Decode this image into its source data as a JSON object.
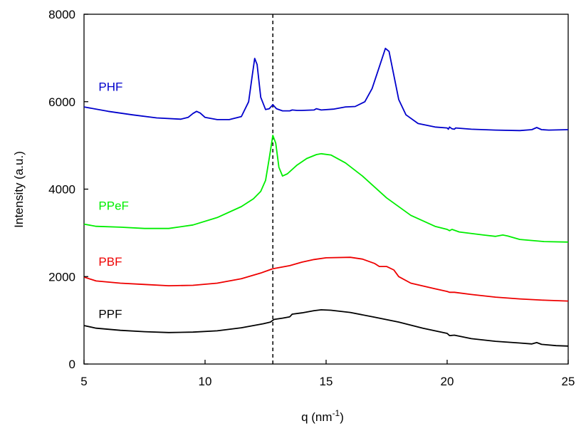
{
  "chart_data": {
    "type": "line",
    "xlabel": "q (nm",
    "xlabel_sup": "-1",
    "xlabel_suffix": ")",
    "ylabel": "Intensity (a.u.)",
    "xlim": [
      5,
      25
    ],
    "ylim": [
      0,
      8000
    ],
    "x_ticks": [
      5,
      10,
      15,
      20,
      25
    ],
    "y_ticks": [
      0,
      2000,
      4000,
      6000,
      8000
    ],
    "grid": false,
    "reference_line": {
      "x": 12.8,
      "style": "dashed",
      "color": "#000000"
    },
    "series": [
      {
        "name": "PHF",
        "color": "#0000cc",
        "label_at": [
          5.6,
          6250
        ],
        "points": [
          [
            5,
            5880
          ],
          [
            6,
            5780
          ],
          [
            7,
            5700
          ],
          [
            8,
            5630
          ],
          [
            9,
            5600
          ],
          [
            9.3,
            5640
          ],
          [
            9.5,
            5730
          ],
          [
            9.65,
            5780
          ],
          [
            9.8,
            5740
          ],
          [
            10,
            5640
          ],
          [
            10.5,
            5590
          ],
          [
            11,
            5590
          ],
          [
            11.5,
            5660
          ],
          [
            11.8,
            6000
          ],
          [
            11.95,
            6600
          ],
          [
            12.05,
            6990
          ],
          [
            12.15,
            6850
          ],
          [
            12.3,
            6100
          ],
          [
            12.5,
            5820
          ],
          [
            12.65,
            5840
          ],
          [
            12.8,
            5930
          ],
          [
            12.95,
            5840
          ],
          [
            13.2,
            5790
          ],
          [
            13.5,
            5790
          ],
          [
            13.6,
            5810
          ],
          [
            13.8,
            5800
          ],
          [
            14,
            5800
          ],
          [
            14.5,
            5810
          ],
          [
            14.6,
            5840
          ],
          [
            14.8,
            5810
          ],
          [
            15.3,
            5830
          ],
          [
            15.8,
            5880
          ],
          [
            16.2,
            5890
          ],
          [
            16.6,
            6000
          ],
          [
            16.9,
            6300
          ],
          [
            17.2,
            6800
          ],
          [
            17.45,
            7220
          ],
          [
            17.6,
            7150
          ],
          [
            17.8,
            6600
          ],
          [
            18,
            6050
          ],
          [
            18.3,
            5700
          ],
          [
            18.8,
            5500
          ],
          [
            19.5,
            5420
          ],
          [
            20,
            5400
          ],
          [
            20.05,
            5370
          ],
          [
            20.1,
            5420
          ],
          [
            20.2,
            5380
          ],
          [
            20.3,
            5370
          ],
          [
            20.35,
            5400
          ],
          [
            21,
            5370
          ],
          [
            22,
            5350
          ],
          [
            23,
            5340
          ],
          [
            23.5,
            5360
          ],
          [
            23.7,
            5410
          ],
          [
            23.9,
            5360
          ],
          [
            24.2,
            5350
          ],
          [
            25,
            5360
          ]
        ]
      },
      {
        "name": "PPeF",
        "color": "#00ee00",
        "label_at": [
          5.6,
          3530
        ],
        "points": [
          [
            5,
            3200
          ],
          [
            5.5,
            3150
          ],
          [
            6.5,
            3130
          ],
          [
            7.5,
            3100
          ],
          [
            8.5,
            3100
          ],
          [
            9.5,
            3180
          ],
          [
            10.5,
            3350
          ],
          [
            11.5,
            3600
          ],
          [
            12,
            3780
          ],
          [
            12.3,
            3950
          ],
          [
            12.5,
            4200
          ],
          [
            12.65,
            4700
          ],
          [
            12.8,
            5230
          ],
          [
            12.92,
            5050
          ],
          [
            13.05,
            4500
          ],
          [
            13.2,
            4300
          ],
          [
            13.4,
            4350
          ],
          [
            13.8,
            4550
          ],
          [
            14.2,
            4700
          ],
          [
            14.6,
            4790
          ],
          [
            14.8,
            4810
          ],
          [
            15.2,
            4780
          ],
          [
            15.8,
            4600
          ],
          [
            16.5,
            4300
          ],
          [
            17.5,
            3800
          ],
          [
            18.5,
            3400
          ],
          [
            19.5,
            3150
          ],
          [
            20,
            3080
          ],
          [
            20.1,
            3050
          ],
          [
            20.2,
            3080
          ],
          [
            20.5,
            3020
          ],
          [
            21.5,
            2950
          ],
          [
            22,
            2920
          ],
          [
            22.3,
            2950
          ],
          [
            22.5,
            2930
          ],
          [
            23,
            2850
          ],
          [
            24,
            2800
          ],
          [
            25,
            2790
          ]
        ]
      },
      {
        "name": "PBF",
        "color": "#ee0000",
        "label_at": [
          5.6,
          2250
        ],
        "points": [
          [
            5,
            1990
          ],
          [
            5.5,
            1900
          ],
          [
            6.5,
            1850
          ],
          [
            7.5,
            1820
          ],
          [
            8.5,
            1790
          ],
          [
            9.5,
            1800
          ],
          [
            10.5,
            1850
          ],
          [
            11.5,
            1950
          ],
          [
            12.3,
            2080
          ],
          [
            12.8,
            2180
          ],
          [
            13.2,
            2220
          ],
          [
            13.5,
            2250
          ],
          [
            14,
            2330
          ],
          [
            14.5,
            2390
          ],
          [
            15,
            2430
          ],
          [
            16,
            2440
          ],
          [
            16.5,
            2400
          ],
          [
            17,
            2300
          ],
          [
            17.2,
            2230
          ],
          [
            17.5,
            2230
          ],
          [
            17.8,
            2150
          ],
          [
            18,
            2000
          ],
          [
            18.5,
            1850
          ],
          [
            19.5,
            1720
          ],
          [
            20,
            1660
          ],
          [
            20.1,
            1640
          ],
          [
            20.3,
            1640
          ],
          [
            21,
            1590
          ],
          [
            22,
            1530
          ],
          [
            23,
            1490
          ],
          [
            24,
            1460
          ],
          [
            25,
            1440
          ]
        ]
      },
      {
        "name": "PPF",
        "color": "#000000",
        "label_at": [
          5.6,
          1050
        ],
        "points": [
          [
            5,
            880
          ],
          [
            5.5,
            820
          ],
          [
            6.5,
            770
          ],
          [
            7.5,
            740
          ],
          [
            8.5,
            720
          ],
          [
            9.5,
            730
          ],
          [
            10.5,
            760
          ],
          [
            11.5,
            830
          ],
          [
            12.4,
            920
          ],
          [
            12.7,
            960
          ],
          [
            12.85,
            1020
          ],
          [
            13.2,
            1050
          ],
          [
            13.5,
            1080
          ],
          [
            13.6,
            1140
          ],
          [
            14,
            1170
          ],
          [
            14.5,
            1220
          ],
          [
            14.8,
            1240
          ],
          [
            15.2,
            1230
          ],
          [
            16,
            1180
          ],
          [
            17,
            1070
          ],
          [
            18,
            960
          ],
          [
            19,
            820
          ],
          [
            19.5,
            760
          ],
          [
            20,
            700
          ],
          [
            20.1,
            650
          ],
          [
            20.3,
            660
          ],
          [
            21,
            580
          ],
          [
            22,
            520
          ],
          [
            23,
            480
          ],
          [
            23.5,
            460
          ],
          [
            23.7,
            490
          ],
          [
            23.9,
            450
          ],
          [
            24.5,
            420
          ],
          [
            25,
            410
          ]
        ]
      }
    ]
  }
}
